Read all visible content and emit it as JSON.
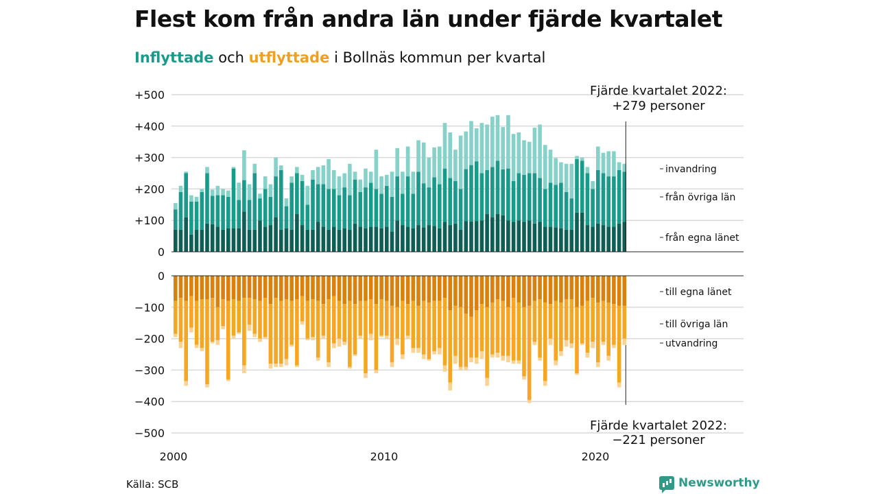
{
  "title": "Flest kom från andra län under fjärde kvartalet",
  "subtitle": {
    "in_word": "Inflyttade",
    "and": " och ",
    "out_word": "utflyttade",
    "rest": " i Bollnäs kommun per kvartal"
  },
  "source": "Källa: SCB",
  "brand": "Newsworthy",
  "colors": {
    "in_local": "#0f5e54",
    "in_other": "#1a9a8a",
    "in_immig": "#86d2c8",
    "out_local": "#d9810c",
    "out_other": "#f5a623",
    "out_emig": "#fad293",
    "subtitle_in": "#1a9a8a",
    "subtitle_out": "#f0a020"
  },
  "chart_data": {
    "type": "bar",
    "stacked": true,
    "x_start": "2000Q1",
    "x_end": "2022Q4",
    "x_ticks": [
      "2000",
      "2010",
      "2020"
    ],
    "y_ticks_top": [
      "+500",
      "+400",
      "+300",
      "+200",
      "+100",
      "0"
    ],
    "y_ticks_bottom": [
      "0",
      "−100",
      "−200",
      "−300",
      "−400",
      "−500"
    ],
    "ylim_top": [
      0,
      500
    ],
    "ylim_bottom": [
      -500,
      0
    ],
    "grid": true,
    "annotation_top": [
      "Fjärde kvartalet 2022:",
      "+279 personer"
    ],
    "annotation_bottom": [
      "Fjärde kvartalet 2022:",
      "−221 personer"
    ],
    "series_labels": {
      "in_immig": "invandring",
      "in_other": "från övriga län",
      "in_local": "från egna länet",
      "out_local": "till egna länet",
      "out_other": "till övriga län",
      "out_emig": "utvandring"
    },
    "in_local": [
      70,
      70,
      110,
      55,
      70,
      70,
      90,
      88,
      80,
      70,
      75,
      75,
      75,
      128,
      70,
      70,
      100,
      80,
      85,
      110,
      70,
      75,
      70,
      120,
      85,
      70,
      70,
      95,
      80,
      70,
      80,
      70,
      75,
      70,
      90,
      80,
      75,
      80,
      80,
      75,
      80,
      65,
      100,
      85,
      80,
      75,
      85,
      78,
      85,
      82,
      75,
      95,
      85,
      90,
      70,
      98,
      96,
      98,
      100,
      120,
      110,
      120,
      116,
      100,
      95,
      100,
      95,
      100,
      90,
      95,
      80,
      80,
      78,
      75,
      70,
      70,
      125,
      125,
      85,
      80,
      90,
      85,
      80,
      80,
      90,
      95
    ],
    "in_other": [
      65,
      120,
      140,
      105,
      90,
      120,
      160,
      90,
      100,
      110,
      100,
      190,
      90,
      100,
      95,
      180,
      70,
      120,
      90,
      130,
      190,
      70,
      150,
      130,
      140,
      80,
      160,
      120,
      135,
      130,
      120,
      110,
      130,
      110,
      140,
      110,
      130,
      140,
      120,
      110,
      130,
      110,
      140,
      100,
      160,
      110,
      170,
      140,
      120,
      155,
      140,
      170,
      150,
      135,
      130,
      165,
      180,
      190,
      150,
      140,
      160,
      170,
      146,
      165,
      130,
      150,
      150,
      150,
      160,
      140,
      120,
      140,
      135,
      145,
      120,
      100,
      170,
      165,
      165,
      120,
      170,
      165,
      160,
      160,
      170,
      160
    ],
    "in_immig": [
      20,
      20,
      5,
      20,
      15,
      10,
      20,
      20,
      30,
      20,
      20,
      5,
      55,
      95,
      50,
      30,
      15,
      40,
      40,
      60,
      15,
      25,
      20,
      20,
      20,
      60,
      30,
      55,
      60,
      95,
      60,
      60,
      45,
      100,
      25,
      40,
      60,
      35,
      125,
      55,
      35,
      80,
      90,
      70,
      95,
      70,
      100,
      130,
      95,
      95,
      120,
      145,
      145,
      100,
      170,
      120,
      140,
      105,
      160,
      145,
      160,
      145,
      135,
      170,
      150,
      130,
      110,
      100,
      145,
      170,
      140,
      105,
      85,
      65,
      90,
      110,
      10,
      10,
      20,
      25,
      75,
      65,
      80,
      80,
      25,
      25
    ],
    "out_local": [
      80,
      70,
      80,
      65,
      80,
      75,
      75,
      70,
      100,
      75,
      80,
      75,
      80,
      70,
      70,
      75,
      80,
      70,
      90,
      70,
      80,
      75,
      80,
      75,
      65,
      80,
      75,
      80,
      90,
      75,
      65,
      80,
      90,
      80,
      90,
      80,
      80,
      75,
      90,
      75,
      80,
      95,
      100,
      80,
      90,
      80,
      95,
      80,
      85,
      80,
      80,
      70,
      110,
      95,
      100,
      120,
      130,
      110,
      90,
      100,
      85,
      75,
      80,
      100,
      70,
      85,
      100,
      95,
      80,
      75,
      85,
      90,
      80,
      85,
      75,
      75,
      100,
      95,
      80,
      70,
      85,
      80,
      85,
      90,
      95,
      95
    ],
    "out_other": [
      105,
      140,
      255,
      100,
      140,
      155,
      270,
      140,
      105,
      85,
      250,
      115,
      100,
      215,
      85,
      110,
      120,
      125,
      190,
      210,
      200,
      190,
      140,
      210,
      80,
      120,
      120,
      180,
      100,
      200,
      150,
      120,
      120,
      210,
      160,
      110,
      230,
      110,
      210,
      115,
      110,
      180,
      100,
      170,
      100,
      150,
      135,
      170,
      180,
      160,
      150,
      215,
      230,
      160,
      190,
      170,
      130,
      150,
      150,
      225,
      165,
      170,
      175,
      155,
      200,
      185,
      220,
      300,
      130,
      185,
      250,
      110,
      190,
      155,
      130,
      140,
      210,
      120,
      165,
      140,
      190,
      130,
      170,
      130,
      245,
      105
    ],
    "out_emig": [
      10,
      20,
      15,
      15,
      10,
      10,
      10,
      5,
      15,
      10,
      5,
      10,
      5,
      25,
      20,
      10,
      10,
      5,
      15,
      10,
      10,
      20,
      5,
      5,
      10,
      5,
      10,
      10,
      10,
      15,
      15,
      25,
      10,
      5,
      5,
      10,
      15,
      20,
      10,
      5,
      10,
      15,
      20,
      15,
      10,
      15,
      15,
      15,
      5,
      10,
      20,
      20,
      25,
      25,
      10,
      10,
      15,
      20,
      25,
      25,
      10,
      15,
      15,
      20,
      10,
      10,
      10,
      10,
      10,
      10,
      15,
      20,
      15,
      15,
      20,
      15,
      5,
      5,
      15,
      20,
      15,
      10,
      15,
      10,
      15,
      20
    ]
  }
}
